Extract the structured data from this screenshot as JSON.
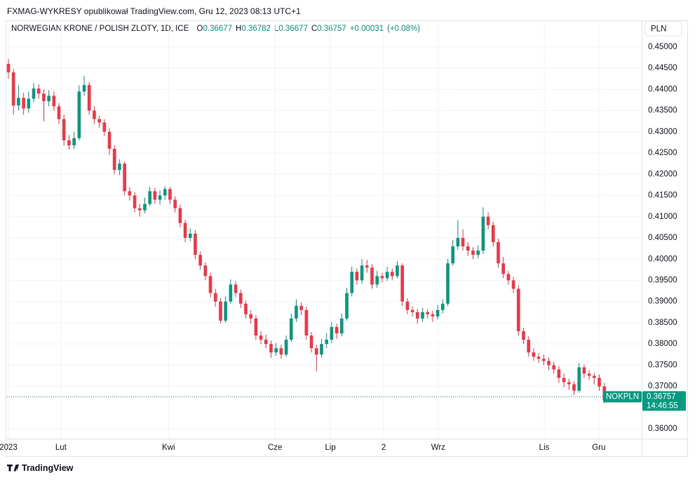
{
  "header": "FXMAG-WYKRESY opublikował TradingView.com, Gru 12, 2023 08:13 UTC+1",
  "footer": "TradingView",
  "chart_data": {
    "type": "candlestick",
    "currency": "PLN",
    "legend": {
      "title": "NORWEGIAN KRONE / POLISH ZLOTY, 1D, ICE",
      "labels": [
        "O",
        "H",
        "L",
        "C"
      ],
      "change": {
        "value": 0.00031,
        "label": "+0.00031"
      },
      "change_pct": {
        "value": 0.08,
        "label": "(+0.08%)"
      }
    },
    "price_tag": {
      "symbol": "NOKPLN",
      "countdown": "14:46:55"
    },
    "up_color": "#089981",
    "down_color": "#f23645",
    "grid": true,
    "ylim": [
      0.3577,
      0.4561
    ],
    "yticks": [
      {
        "value": 0.36,
        "label": "0.36000"
      },
      {
        "value": 0.37,
        "label": "0.37000"
      },
      {
        "value": 0.375,
        "label": "0.37500"
      },
      {
        "value": 0.38,
        "label": "0.38000"
      },
      {
        "value": 0.385,
        "label": "0.38500"
      },
      {
        "value": 0.39,
        "label": "0.39000"
      },
      {
        "value": 0.395,
        "label": "0.39500"
      },
      {
        "value": 0.4,
        "label": "0.40000"
      },
      {
        "value": 0.405,
        "label": "0.40500"
      },
      {
        "value": 0.41,
        "label": "0.41000"
      },
      {
        "value": 0.415,
        "label": "0.41500"
      },
      {
        "value": 0.42,
        "label": "0.42000"
      },
      {
        "value": 0.425,
        "label": "0.42500"
      },
      {
        "value": 0.43,
        "label": "0.43000"
      },
      {
        "value": 0.435,
        "label": "0.43500"
      },
      {
        "value": 0.44,
        "label": "0.44000"
      },
      {
        "value": 0.445,
        "label": "0.44500"
      },
      {
        "value": 0.45,
        "label": "0.45000"
      }
    ],
    "xlim": [
      -0.28,
      125.4
    ],
    "xticks": [
      {
        "value": 0,
        "label": "2023"
      },
      {
        "value": 10.4,
        "label": "Lut"
      },
      {
        "value": 31.7,
        "label": "Kwi"
      },
      {
        "value": 52.8,
        "label": "Cze"
      },
      {
        "value": 63.75,
        "label": "Lip"
      },
      {
        "value": 74.3,
        "label": "2"
      },
      {
        "value": 85.1,
        "label": "Wrz"
      },
      {
        "value": 106.1,
        "label": "Lis"
      },
      {
        "value": 116.9,
        "label": "Gru"
      }
    ],
    "series": [
      {
        "name": "NOKPLN",
        "open": [
          0.446,
          0.444,
          0.4362,
          0.438,
          0.4355,
          0.4378,
          0.4402,
          0.439,
          0.4372,
          0.4385,
          0.436,
          0.433,
          0.428,
          0.4268,
          0.4285,
          0.4395,
          0.441,
          0.435,
          0.433,
          0.4322,
          0.43,
          0.426,
          0.421,
          0.4225,
          0.416,
          0.415,
          0.412,
          0.4115,
          0.413,
          0.416,
          0.414,
          0.415,
          0.4165,
          0.414,
          0.412,
          0.4085,
          0.405,
          0.406,
          0.401,
          0.3985,
          0.396,
          0.392,
          0.39,
          0.3855,
          0.39,
          0.394,
          0.392,
          0.3895,
          0.387,
          0.386,
          0.382,
          0.381,
          0.38,
          0.378,
          0.379,
          0.3775,
          0.381,
          0.386,
          0.389,
          0.388,
          0.382,
          0.379,
          0.3775,
          0.38,
          0.381,
          0.384,
          0.3825,
          0.386,
          0.392,
          0.397,
          0.395,
          0.3985,
          0.398,
          0.394,
          0.396,
          0.3955,
          0.397,
          0.396,
          0.3985,
          0.39,
          0.388,
          0.3875,
          0.386,
          0.3875,
          0.387,
          0.3865,
          0.388,
          0.3895,
          0.399,
          0.403,
          0.405,
          0.403,
          0.402,
          0.401,
          0.402,
          0.41,
          0.408,
          0.404,
          0.399,
          0.3965,
          0.395,
          0.393,
          0.383,
          0.381,
          0.378,
          0.377,
          0.3765,
          0.376,
          0.375,
          0.374,
          0.372,
          0.371,
          0.3705,
          0.369,
          0.3745,
          0.373,
          0.3725,
          0.372,
          0.37,
          0.36677
        ],
        "high": [
          0.4472,
          0.4448,
          0.441,
          0.4392,
          0.4395,
          0.4415,
          0.4412,
          0.44,
          0.4398,
          0.4395,
          0.4368,
          0.434,
          0.4292,
          0.43,
          0.441,
          0.4432,
          0.4418,
          0.436,
          0.4338,
          0.433,
          0.4308,
          0.4268,
          0.4235,
          0.423,
          0.417,
          0.4158,
          0.413,
          0.4145,
          0.417,
          0.4168,
          0.4162,
          0.4172,
          0.417,
          0.4148,
          0.4128,
          0.4092,
          0.4072,
          0.4068,
          0.4018,
          0.3992,
          0.3968,
          0.393,
          0.3908,
          0.3912,
          0.3952,
          0.3948,
          0.3928,
          0.3902,
          0.388,
          0.3868,
          0.383,
          0.3822,
          0.3808,
          0.3802,
          0.3798,
          0.382,
          0.3872,
          0.3905,
          0.3898,
          0.3888,
          0.3828,
          0.3798,
          0.3812,
          0.3825,
          0.3852,
          0.3848,
          0.3872,
          0.3932,
          0.3982,
          0.3978,
          0.4,
          0.3998,
          0.3988,
          0.3972,
          0.3968,
          0.3982,
          0.3978,
          0.3995,
          0.399,
          0.3908,
          0.3888,
          0.3882,
          0.3885,
          0.3882,
          0.3878,
          0.3892,
          0.3905,
          0.4,
          0.4045,
          0.4092,
          0.407,
          0.404,
          0.4028,
          0.4032,
          0.4122,
          0.411,
          0.4088,
          0.4048,
          0.4005,
          0.3972,
          0.3958,
          0.3938,
          0.3838,
          0.3818,
          0.379,
          0.3778,
          0.3775,
          0.3768,
          0.3758,
          0.3748,
          0.373,
          0.3718,
          0.3712,
          0.3755,
          0.3752,
          0.3738,
          0.3732,
          0.3728,
          0.3708,
          0.36782
        ],
        "low": [
          0.4425,
          0.434,
          0.435,
          0.434,
          0.4345,
          0.437,
          0.4378,
          0.4325,
          0.436,
          0.435,
          0.4318,
          0.4268,
          0.4258,
          0.426,
          0.428,
          0.4385,
          0.434,
          0.4318,
          0.431,
          0.429,
          0.4245,
          0.42,
          0.4198,
          0.415,
          0.4138,
          0.411,
          0.41,
          0.4108,
          0.4125,
          0.413,
          0.4128,
          0.414,
          0.413,
          0.411,
          0.4075,
          0.404,
          0.4042,
          0.4,
          0.3975,
          0.395,
          0.391,
          0.3888,
          0.3848,
          0.385,
          0.3895,
          0.391,
          0.3885,
          0.386,
          0.3848,
          0.381,
          0.38,
          0.379,
          0.3768,
          0.3772,
          0.3765,
          0.377,
          0.3805,
          0.3852,
          0.3868,
          0.381,
          0.378,
          0.3735,
          0.3768,
          0.379,
          0.3802,
          0.3812,
          0.3818,
          0.3855,
          0.3912,
          0.394,
          0.3942,
          0.3968,
          0.393,
          0.3932,
          0.3945,
          0.3948,
          0.395,
          0.3955,
          0.389,
          0.387,
          0.3865,
          0.3848,
          0.3852,
          0.386,
          0.3852,
          0.3858,
          0.3872,
          0.389,
          0.3985,
          0.4022,
          0.402,
          0.4008,
          0.4,
          0.4002,
          0.4012,
          0.407,
          0.403,
          0.398,
          0.3955,
          0.394,
          0.392,
          0.382,
          0.38,
          0.377,
          0.376,
          0.3755,
          0.375,
          0.3738,
          0.373,
          0.3708,
          0.3698,
          0.3692,
          0.368,
          0.3685,
          0.372,
          0.3715,
          0.3705,
          0.369,
          0.366,
          0.36677
        ],
        "close": [
          0.444,
          0.4362,
          0.438,
          0.4355,
          0.4378,
          0.4402,
          0.439,
          0.4372,
          0.4385,
          0.436,
          0.433,
          0.428,
          0.4268,
          0.4285,
          0.4395,
          0.441,
          0.435,
          0.433,
          0.4322,
          0.43,
          0.426,
          0.421,
          0.4225,
          0.416,
          0.415,
          0.412,
          0.4115,
          0.413,
          0.416,
          0.414,
          0.415,
          0.4165,
          0.414,
          0.412,
          0.4085,
          0.405,
          0.406,
          0.401,
          0.3985,
          0.396,
          0.392,
          0.39,
          0.3855,
          0.39,
          0.394,
          0.392,
          0.3895,
          0.387,
          0.386,
          0.382,
          0.381,
          0.38,
          0.378,
          0.379,
          0.3775,
          0.381,
          0.386,
          0.389,
          0.388,
          0.382,
          0.379,
          0.3775,
          0.38,
          0.381,
          0.384,
          0.3825,
          0.386,
          0.392,
          0.397,
          0.395,
          0.3985,
          0.398,
          0.394,
          0.396,
          0.3955,
          0.397,
          0.396,
          0.3985,
          0.39,
          0.388,
          0.3875,
          0.386,
          0.3875,
          0.387,
          0.3865,
          0.388,
          0.3895,
          0.399,
          0.403,
          0.405,
          0.403,
          0.402,
          0.401,
          0.402,
          0.41,
          0.408,
          0.404,
          0.399,
          0.3965,
          0.395,
          0.393,
          0.383,
          0.381,
          0.378,
          0.377,
          0.3765,
          0.376,
          0.375,
          0.374,
          0.372,
          0.371,
          0.3705,
          0.369,
          0.3745,
          0.373,
          0.3725,
          0.372,
          0.37,
          0.3668,
          0.36757
        ]
      }
    ]
  }
}
